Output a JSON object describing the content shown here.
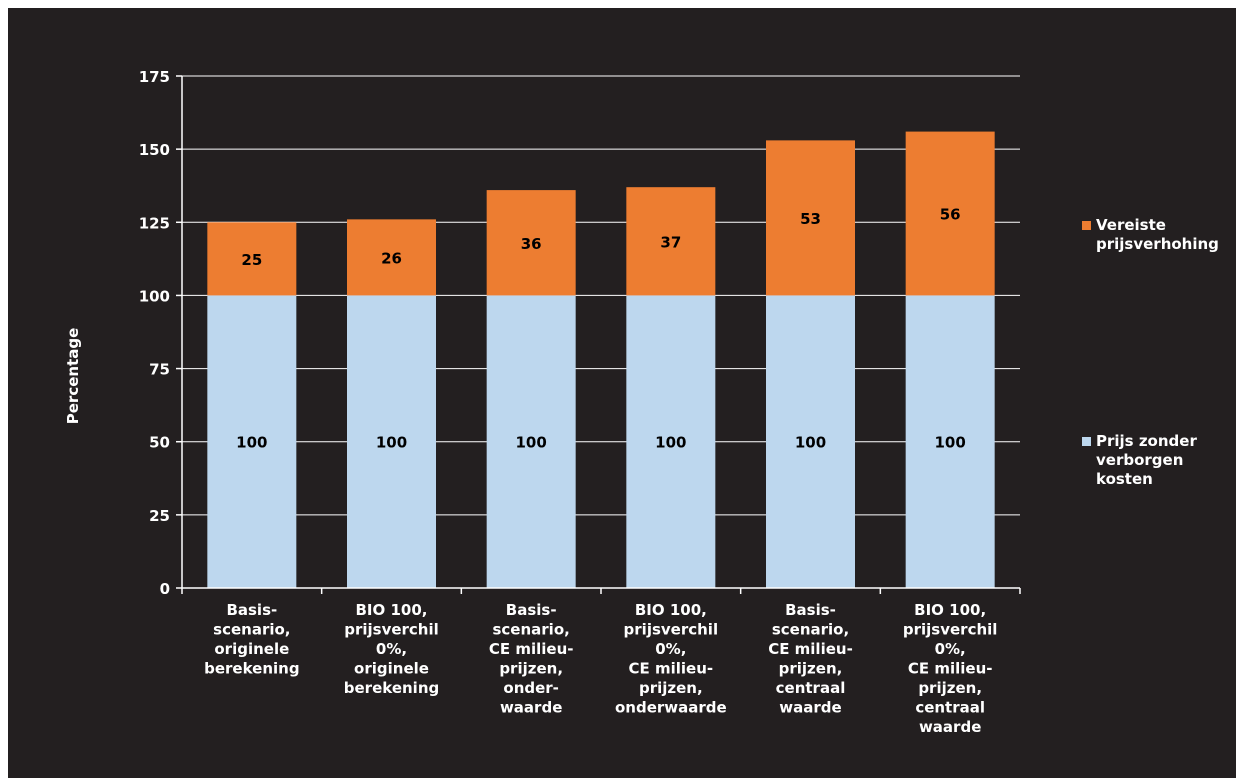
{
  "chart_data": {
    "type": "bar",
    "stacked": true,
    "categories": [
      "Basis-\nscenario,\noriginele\nberekening",
      "BIO 100,\nprijsverchil\n0%,\noriginele\nberekening",
      "Basis-\nscenario,\nCE milieu-\nprijzen,\nonder-\nwaarde",
      "BIO 100,\nprijsverchil\n0%,\nCE milieu-\nprijzen,\nonderwaarde",
      "Basis-\nscenario,\nCE milieu-\nprijzen,\ncentraal\nwaarde",
      "BIO 100,\nprijsverchil\n0%,\nCE milieu-\nprijzen,\ncentraal\nwaarde"
    ],
    "series": [
      {
        "name": "Prijs zonder verborgen kosten",
        "values": [
          100,
          100,
          100,
          100,
          100,
          100
        ],
        "color": "#bdd7ee"
      },
      {
        "name": "Vereiste prijsverhoging",
        "values": [
          25,
          26,
          36,
          37,
          53,
          56
        ],
        "color": "#ed7d31"
      }
    ],
    "ylabel": "Percentage",
    "xlabel": "",
    "ylim": [
      0,
      175
    ],
    "yticks": [
      0,
      25,
      50,
      75,
      100,
      125,
      150,
      175
    ],
    "grid": true,
    "legend_position": "right",
    "background": "#231f20",
    "text_color": "#ffffff",
    "gridline_color": "#ffffff"
  },
  "legend": {
    "top_label": "Vereiste\nprijsverhohing",
    "top_color": "#ed7d31",
    "bottom_label": "Prijs zonder\nverborgen\nkosten",
    "bottom_color": "#bdd7ee"
  }
}
